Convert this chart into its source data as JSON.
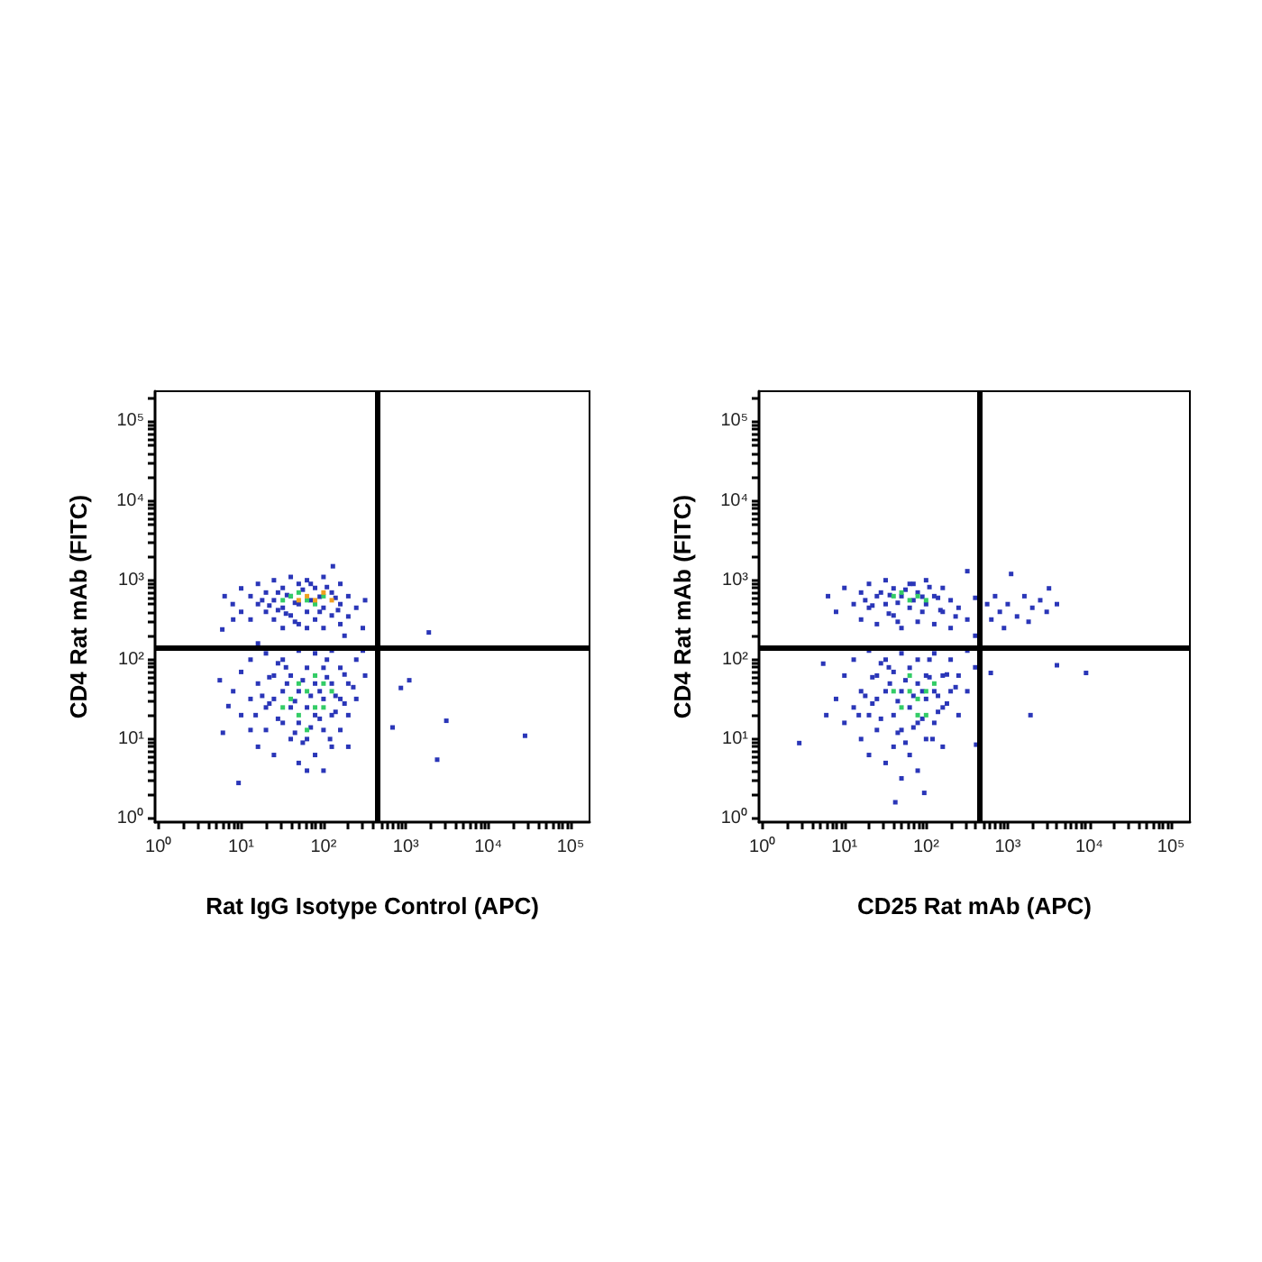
{
  "chart_data": [
    {
      "type": "scatter",
      "xlabel": "Rat IgG Isotype Control (APC)",
      "ylabel": "CD4 Rat mAb (FITC)",
      "log": "xy",
      "marker": "square",
      "xlim": [
        0.9,
        170000
      ],
      "ylim": [
        0.9,
        240000
      ],
      "xticks": [
        {
          "value": 1,
          "label": "10⁰"
        },
        {
          "value": 2,
          "label": null
        },
        {
          "value": 3,
          "label": null
        },
        {
          "value": 4,
          "label": null
        },
        {
          "value": 5,
          "label": null
        },
        {
          "value": 6,
          "label": null
        },
        {
          "value": 7,
          "label": null
        },
        {
          "value": 8,
          "label": null
        },
        {
          "value": 9,
          "label": null
        },
        {
          "value": 10,
          "label": "10¹"
        },
        {
          "value": 20,
          "label": null
        },
        {
          "value": 30,
          "label": null
        },
        {
          "value": 40,
          "label": null
        },
        {
          "value": 50,
          "label": null
        },
        {
          "value": 60,
          "label": null
        },
        {
          "value": 70,
          "label": null
        },
        {
          "value": 80,
          "label": null
        },
        {
          "value": 90,
          "label": null
        },
        {
          "value": 100,
          "label": "10²"
        },
        {
          "value": 200,
          "label": null
        },
        {
          "value": 300,
          "label": null
        },
        {
          "value": 400,
          "label": null
        },
        {
          "value": 500,
          "label": null
        },
        {
          "value": 600,
          "label": null
        },
        {
          "value": 700,
          "label": null
        },
        {
          "value": 800,
          "label": null
        },
        {
          "value": 900,
          "label": null
        },
        {
          "value": 1000,
          "label": "10³"
        },
        {
          "value": 2000,
          "label": null
        },
        {
          "value": 3000,
          "label": null
        },
        {
          "value": 4000,
          "label": null
        },
        {
          "value": 5000,
          "label": null
        },
        {
          "value": 6000,
          "label": null
        },
        {
          "value": 7000,
          "label": null
        },
        {
          "value": 8000,
          "label": null
        },
        {
          "value": 9000,
          "label": null
        },
        {
          "value": 10000,
          "label": "10⁴"
        },
        {
          "value": 20000,
          "label": null
        },
        {
          "value": 30000,
          "label": null
        },
        {
          "value": 40000,
          "label": null
        },
        {
          "value": 50000,
          "label": null
        },
        {
          "value": 60000,
          "label": null
        },
        {
          "value": 70000,
          "label": null
        },
        {
          "value": 80000,
          "label": null
        },
        {
          "value": 90000,
          "label": null
        },
        {
          "value": 100000,
          "label": "10⁵"
        }
      ],
      "yticks": [
        {
          "value": 1,
          "label": "10⁰"
        },
        {
          "value": 2,
          "label": null
        },
        {
          "value": 3,
          "label": null
        },
        {
          "value": 4,
          "label": null
        },
        {
          "value": 5,
          "label": null
        },
        {
          "value": 6,
          "label": null
        },
        {
          "value": 7,
          "label": null
        },
        {
          "value": 8,
          "label": null
        },
        {
          "value": 9,
          "label": null
        },
        {
          "value": 10,
          "label": "10¹"
        },
        {
          "value": 20,
          "label": null
        },
        {
          "value": 30,
          "label": null
        },
        {
          "value": 40,
          "label": null
        },
        {
          "value": 50,
          "label": null
        },
        {
          "value": 60,
          "label": null
        },
        {
          "value": 70,
          "label": null
        },
        {
          "value": 80,
          "label": null
        },
        {
          "value": 90,
          "label": null
        },
        {
          "value": 100,
          "label": "10²"
        },
        {
          "value": 200,
          "label": null
        },
        {
          "value": 300,
          "label": null
        },
        {
          "value": 400,
          "label": null
        },
        {
          "value": 500,
          "label": null
        },
        {
          "value": 600,
          "label": null
        },
        {
          "value": 700,
          "label": null
        },
        {
          "value": 800,
          "label": null
        },
        {
          "value": 900,
          "label": null
        },
        {
          "value": 1000,
          "label": "10³"
        },
        {
          "value": 2000,
          "label": null
        },
        {
          "value": 3000,
          "label": null
        },
        {
          "value": 4000,
          "label": null
        },
        {
          "value": 5000,
          "label": null
        },
        {
          "value": 6000,
          "label": null
        },
        {
          "value": 7000,
          "label": null
        },
        {
          "value": 8000,
          "label": null
        },
        {
          "value": 9000,
          "label": null
        },
        {
          "value": 10000,
          "label": "10⁴"
        },
        {
          "value": 20000,
          "label": null
        },
        {
          "value": 30000,
          "label": null
        },
        {
          "value": 40000,
          "label": null
        },
        {
          "value": 50000,
          "label": null
        },
        {
          "value": 60000,
          "label": null
        },
        {
          "value": 70000,
          "label": null
        },
        {
          "value": 80000,
          "label": null
        },
        {
          "value": 90000,
          "label": null
        },
        {
          "value": 100000,
          "label": "10⁵"
        },
        {
          "value": 200000,
          "label": null
        }
      ],
      "ref_lines": [
        {
          "axis": "x",
          "value": 460,
          "color": "#000000"
        },
        {
          "axis": "y",
          "value": 145,
          "color": "#000000"
        }
      ],
      "series": [
        {
          "color": "#2a36b8",
          "x": [
            6.3,
            7.9,
            10,
            10,
            13,
            13,
            16,
            16,
            20,
            20,
            25,
            25,
            25,
            32,
            32,
            32,
            40,
            40,
            40,
            50,
            50,
            50,
            63,
            63,
            63,
            79,
            79,
            100,
            100,
            100,
            126,
            126,
            160,
            160,
            160,
            200,
            200,
            250,
            320,
            5.9,
            8,
            130,
            300,
            180,
            8,
            10,
            10,
            13,
            13,
            13,
            16,
            16,
            20,
            20,
            20,
            25,
            25,
            25,
            32,
            32,
            32,
            40,
            40,
            40,
            50,
            50,
            50,
            50,
            63,
            63,
            63,
            79,
            79,
            79,
            79,
            100,
            100,
            100,
            126,
            126,
            126,
            126,
            160,
            160,
            160,
            200,
            200,
            250,
            250,
            320,
            300,
            16,
            63,
            100,
            200,
            1900,
            1100,
            870,
            690,
            3100,
            2400,
            28000,
            5.5,
            7,
            6,
            9.3,
            18,
            22,
            28,
            35,
            45,
            56,
            70,
            90,
            110,
            140,
            45,
            70,
            90,
            150,
            36,
            28,
            18,
            22,
            28,
            35,
            45,
            56,
            70,
            90,
            110,
            140,
            180,
            45,
            70,
            110,
            140,
            36,
            28,
            56,
            90,
            22,
            180,
            230,
            15,
            120
          ],
          "values": [
            630,
            500,
            790,
            400,
            630,
            320,
            900,
            500,
            700,
            400,
            1000,
            560,
            320,
            800,
            450,
            250,
            1100,
            630,
            360,
            900,
            500,
            280,
            1000,
            400,
            250,
            800,
            320,
            1100,
            450,
            250,
            700,
            360,
            900,
            500,
            280,
            630,
            350,
            450,
            560,
            240,
            320,
            1500,
            250,
            200,
            40,
            20,
            70,
            13,
            32,
            100,
            50,
            8,
            25,
            120,
            13,
            63,
            32,
            6.3,
            16,
            100,
            40,
            25,
            63,
            10,
            130,
            40,
            16,
            5,
            79,
            25,
            10,
            50,
            20,
            120,
            6.3,
            32,
            79,
            13,
            50,
            20,
            130,
            8,
            32,
            79,
            13,
            50,
            20,
            100,
            32,
            63,
            130,
            160,
            4,
            4,
            8,
            220,
            55,
            44,
            14,
            17,
            5.5,
            11,
            55,
            26,
            12,
            2.8,
            560,
            480,
            700,
            380,
            520,
            760,
            560,
            620,
            820,
            600,
            300,
            900,
            400,
            420,
            650,
            420,
            35,
            60,
            18,
            80,
            30,
            55,
            35,
            18,
            60,
            35,
            65,
            12,
            14,
            100,
            22,
            50,
            90,
            9,
            40,
            28,
            28,
            45,
            20,
            10
          ]
        },
        {
          "color": "#33cc66",
          "x": [
            40,
            63,
            79,
            50,
            100,
            32,
            63,
            79,
            40,
            100,
            50,
            63,
            100,
            126,
            32,
            79,
            50
          ],
          "values": [
            630,
            560,
            500,
            700,
            630,
            560,
            40,
            25,
            32,
            50,
            20,
            13,
            25,
            40,
            25,
            63,
            50
          ]
        },
        {
          "color": "#f0a020",
          "x": [
            63,
            79,
            100,
            50,
            126
          ],
          "values": [
            630,
            560,
            700,
            560,
            560
          ]
        }
      ]
    },
    {
      "type": "scatter",
      "xlabel": "CD25 Rat mAb (APC)",
      "ylabel": "CD4 Rat mAb (FITC)",
      "log": "xy",
      "marker": "square",
      "xlim": [
        0.9,
        170000
      ],
      "ylim": [
        0.9,
        240000
      ],
      "xticks": [
        {
          "value": 1,
          "label": "10⁰"
        },
        {
          "value": 2,
          "label": null
        },
        {
          "value": 3,
          "label": null
        },
        {
          "value": 4,
          "label": null
        },
        {
          "value": 5,
          "label": null
        },
        {
          "value": 6,
          "label": null
        },
        {
          "value": 7,
          "label": null
        },
        {
          "value": 8,
          "label": null
        },
        {
          "value": 9,
          "label": null
        },
        {
          "value": 10,
          "label": "10¹"
        },
        {
          "value": 20,
          "label": null
        },
        {
          "value": 30,
          "label": null
        },
        {
          "value": 40,
          "label": null
        },
        {
          "value": 50,
          "label": null
        },
        {
          "value": 60,
          "label": null
        },
        {
          "value": 70,
          "label": null
        },
        {
          "value": 80,
          "label": null
        },
        {
          "value": 90,
          "label": null
        },
        {
          "value": 100,
          "label": "10²"
        },
        {
          "value": 200,
          "label": null
        },
        {
          "value": 300,
          "label": null
        },
        {
          "value": 400,
          "label": null
        },
        {
          "value": 500,
          "label": null
        },
        {
          "value": 600,
          "label": null
        },
        {
          "value": 700,
          "label": null
        },
        {
          "value": 800,
          "label": null
        },
        {
          "value": 900,
          "label": null
        },
        {
          "value": 1000,
          "label": "10³"
        },
        {
          "value": 2000,
          "label": null
        },
        {
          "value": 3000,
          "label": null
        },
        {
          "value": 4000,
          "label": null
        },
        {
          "value": 5000,
          "label": null
        },
        {
          "value": 6000,
          "label": null
        },
        {
          "value": 7000,
          "label": null
        },
        {
          "value": 8000,
          "label": null
        },
        {
          "value": 9000,
          "label": null
        },
        {
          "value": 10000,
          "label": "10⁴"
        },
        {
          "value": 20000,
          "label": null
        },
        {
          "value": 30000,
          "label": null
        },
        {
          "value": 40000,
          "label": null
        },
        {
          "value": 50000,
          "label": null
        },
        {
          "value": 60000,
          "label": null
        },
        {
          "value": 70000,
          "label": null
        },
        {
          "value": 80000,
          "label": null
        },
        {
          "value": 90000,
          "label": null
        },
        {
          "value": 100000,
          "label": "10⁵"
        }
      ],
      "yticks": [
        {
          "value": 1,
          "label": "10⁰"
        },
        {
          "value": 2,
          "label": null
        },
        {
          "value": 3,
          "label": null
        },
        {
          "value": 4,
          "label": null
        },
        {
          "value": 5,
          "label": null
        },
        {
          "value": 6,
          "label": null
        },
        {
          "value": 7,
          "label": null
        },
        {
          "value": 8,
          "label": null
        },
        {
          "value": 9,
          "label": null
        },
        {
          "value": 10,
          "label": "10¹"
        },
        {
          "value": 20,
          "label": null
        },
        {
          "value": 30,
          "label": null
        },
        {
          "value": 40,
          "label": null
        },
        {
          "value": 50,
          "label": null
        },
        {
          "value": 60,
          "label": null
        },
        {
          "value": 70,
          "label": null
        },
        {
          "value": 80,
          "label": null
        },
        {
          "value": 90,
          "label": null
        },
        {
          "value": 100,
          "label": "10²"
        },
        {
          "value": 200,
          "label": null
        },
        {
          "value": 300,
          "label": null
        },
        {
          "value": 400,
          "label": null
        },
        {
          "value": 500,
          "label": null
        },
        {
          "value": 600,
          "label": null
        },
        {
          "value": 700,
          "label": null
        },
        {
          "value": 800,
          "label": null
        },
        {
          "value": 900,
          "label": null
        },
        {
          "value": 1000,
          "label": "10³"
        },
        {
          "value": 2000,
          "label": null
        },
        {
          "value": 3000,
          "label": null
        },
        {
          "value": 4000,
          "label": null
        },
        {
          "value": 5000,
          "label": null
        },
        {
          "value": 6000,
          "label": null
        },
        {
          "value": 7000,
          "label": null
        },
        {
          "value": 8000,
          "label": null
        },
        {
          "value": 9000,
          "label": null
        },
        {
          "value": 10000,
          "label": "10⁴"
        },
        {
          "value": 20000,
          "label": null
        },
        {
          "value": 30000,
          "label": null
        },
        {
          "value": 40000,
          "label": null
        },
        {
          "value": 50000,
          "label": null
        },
        {
          "value": 60000,
          "label": null
        },
        {
          "value": 70000,
          "label": null
        },
        {
          "value": 80000,
          "label": null
        },
        {
          "value": 90000,
          "label": null
        },
        {
          "value": 100000,
          "label": "10⁵"
        },
        {
          "value": 200000,
          "label": null
        }
      ],
      "ref_lines": [
        {
          "axis": "x",
          "value": 460,
          "color": "#000000"
        },
        {
          "axis": "y",
          "value": 145,
          "color": "#000000"
        }
      ],
      "series": [
        {
          "color": "#2a36b8",
          "x": [
            6.3,
            7.9,
            10,
            13,
            16,
            16,
            20,
            20,
            25,
            25,
            32,
            32,
            40,
            40,
            50,
            50,
            63,
            63,
            79,
            79,
            100,
            100,
            126,
            126,
            160,
            160,
            200,
            200,
            250,
            320,
            400,
            320,
            400,
            560,
            630,
            700,
            800,
            1000,
            1100,
            1300,
            1600,
            2000,
            2500,
            3200,
            3000,
            4000,
            900,
            1800,
            7.9,
            10,
            10,
            13,
            13,
            16,
            16,
            20,
            20,
            20,
            25,
            25,
            25,
            32,
            32,
            32,
            40,
            40,
            40,
            50,
            50,
            50,
            63,
            63,
            63,
            79,
            79,
            79,
            79,
            100,
            100,
            100,
            126,
            126,
            126,
            160,
            160,
            160,
            200,
            200,
            250,
            250,
            320,
            320,
            400,
            50,
            2.8,
            6,
            5.5,
            42,
            95,
            4000,
            9100,
            1900,
            620,
            410,
            18,
            22,
            28,
            35,
            45,
            56,
            70,
            90,
            110,
            140,
            45,
            70,
            90,
            150,
            36,
            230,
            18,
            22,
            28,
            35,
            45,
            56,
            70,
            90,
            110,
            140,
            180,
            45,
            70,
            110,
            140,
            36,
            28,
            56,
            90,
            22,
            180,
            230,
            15,
            120
          ],
          "values": [
            630,
            400,
            800,
            500,
            320,
            700,
            900,
            450,
            630,
            280,
            1000,
            500,
            790,
            360,
            630,
            250,
            900,
            450,
            700,
            300,
            1000,
            500,
            630,
            280,
            800,
            400,
            560,
            250,
            450,
            320,
            200,
            1300,
            600,
            500,
            320,
            630,
            400,
            500,
            1200,
            350,
            630,
            450,
            560,
            790,
            400,
            500,
            250,
            300,
            32,
            63,
            16,
            100,
            25,
            40,
            10,
            130,
            20,
            6.3,
            63,
            32,
            13,
            100,
            40,
            5,
            20,
            70,
            8,
            120,
            40,
            13,
            79,
            25,
            6.3,
            50,
            16,
            100,
            4,
            32,
            63,
            10,
            120,
            40,
            16,
            63,
            25,
            8,
            100,
            40,
            63,
            20,
            40,
            130,
            80,
            3.2,
            8.9,
            20,
            89,
            1.6,
            2.1,
            85,
            68,
            20,
            68,
            8.5,
            560,
            480,
            700,
            380,
            520,
            760,
            560,
            620,
            820,
            600,
            300,
            900,
            400,
            420,
            650,
            350,
            35,
            60,
            18,
            80,
            30,
            55,
            35,
            18,
            60,
            35,
            65,
            12,
            14,
            100,
            22,
            50,
            90,
            9,
            40,
            28,
            28,
            45,
            20,
            10
          ]
        },
        {
          "color": "#33cc66",
          "x": [
            40,
            63,
            79,
            100,
            50,
            63,
            79,
            100,
            50,
            126,
            79,
            63,
            40,
            100
          ],
          "values": [
            630,
            560,
            630,
            560,
            700,
            40,
            32,
            40,
            25,
            50,
            20,
            63,
            40,
            20
          ]
        }
      ]
    }
  ]
}
